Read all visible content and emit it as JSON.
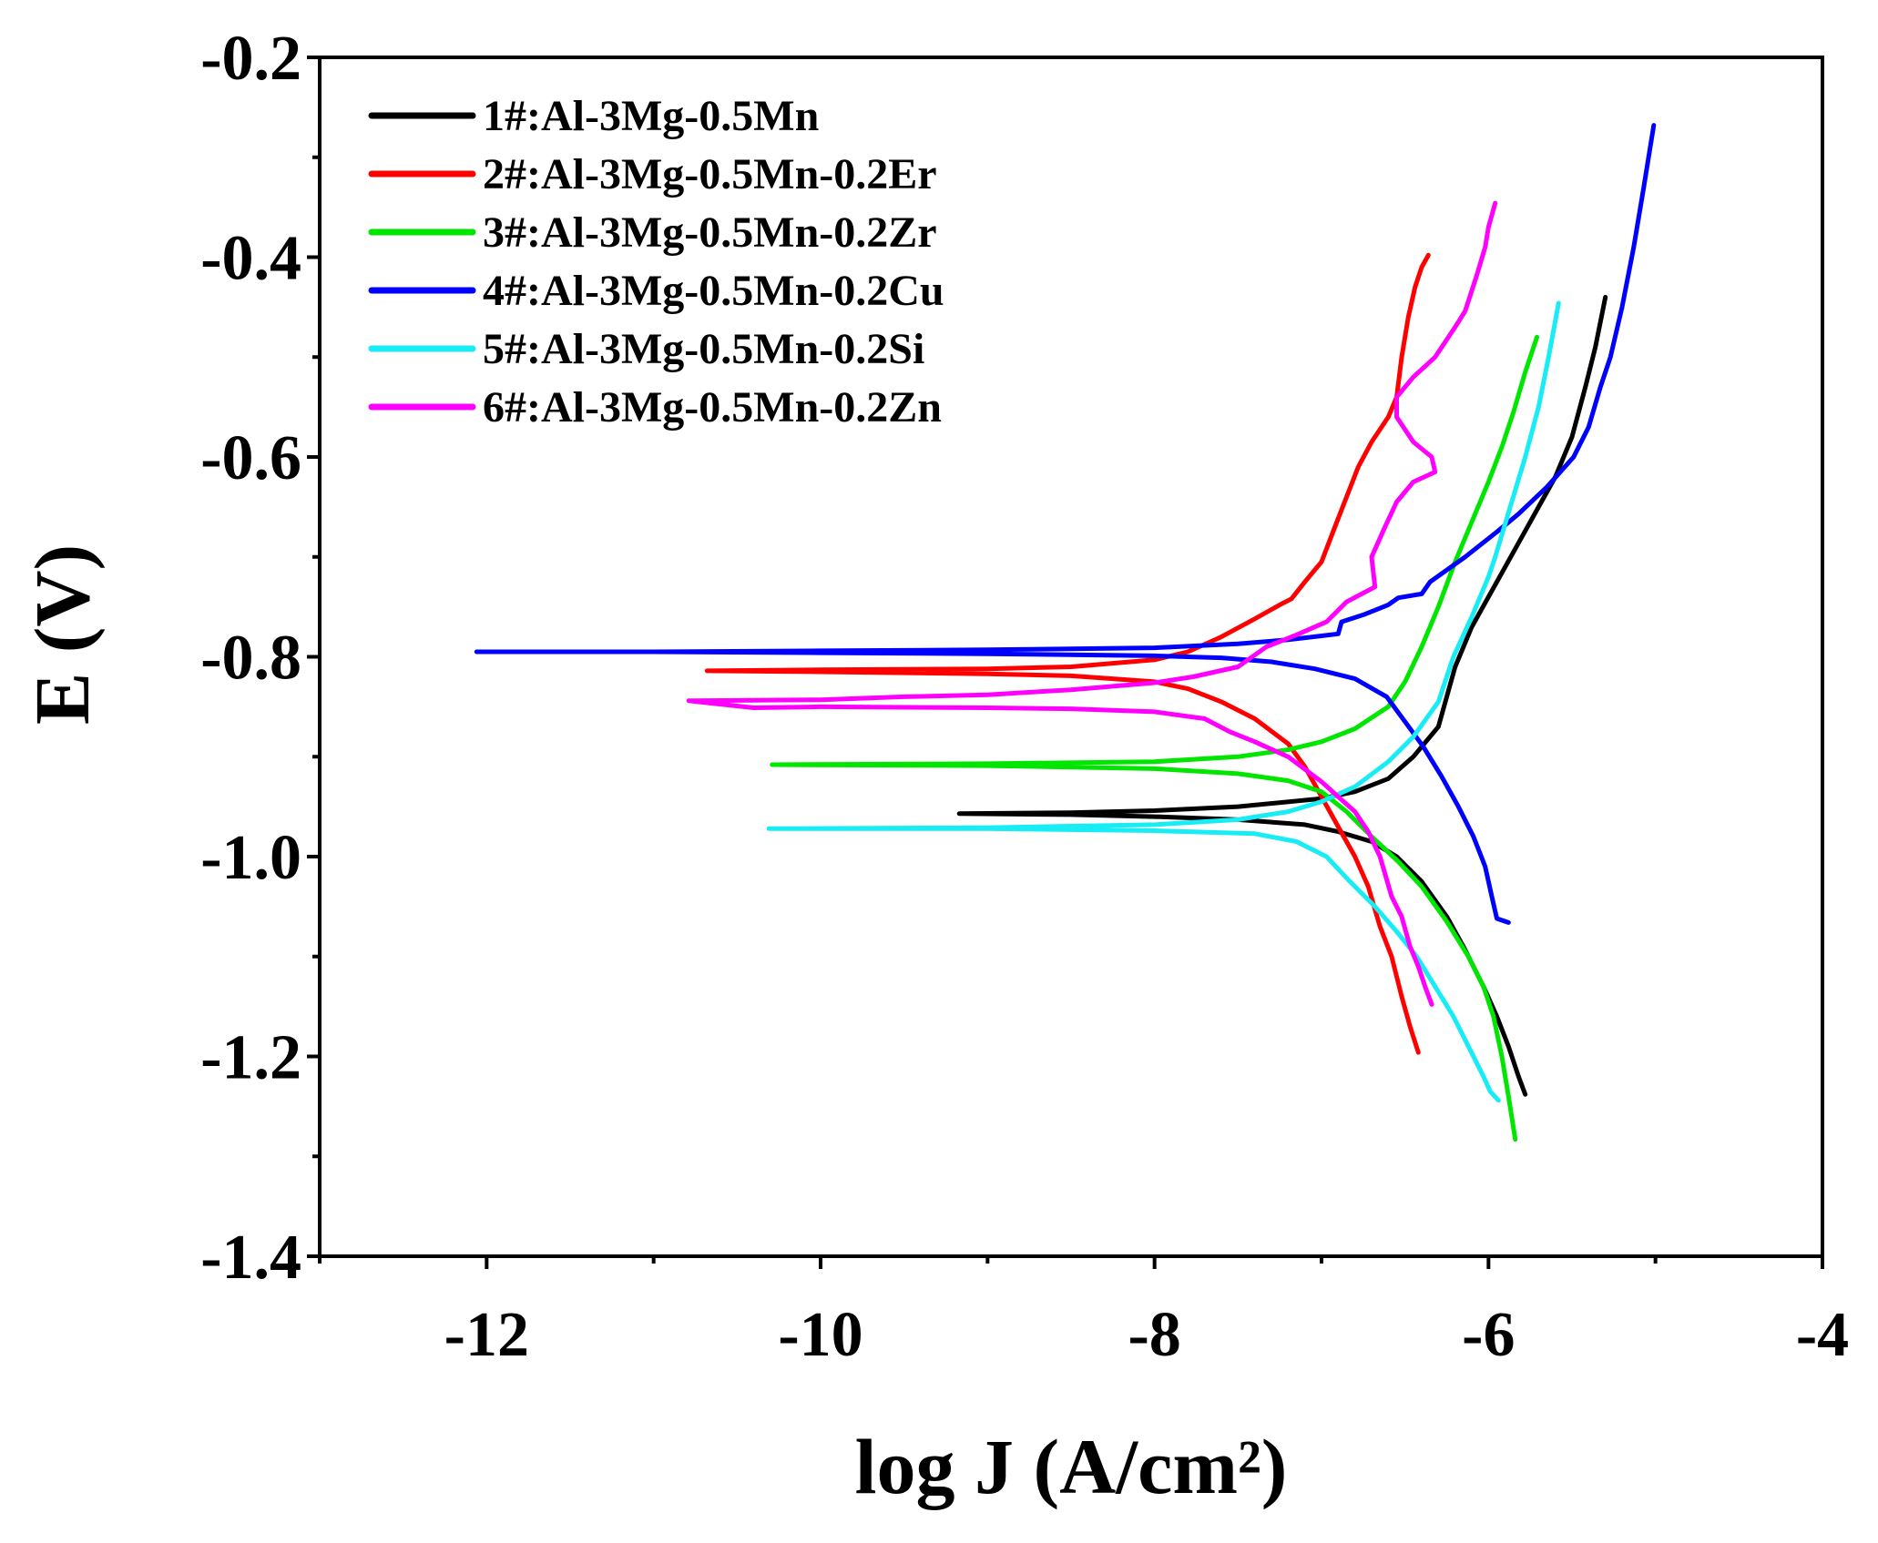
{
  "chart_data": {
    "type": "line",
    "xlabel": "log J (A/cm²)",
    "ylabel": "E (V)",
    "xlim": [
      -13,
      -4
    ],
    "ylim": [
      -1.4,
      -0.2
    ],
    "xticks": [
      -12,
      -10,
      -8,
      -6,
      -4
    ],
    "xtick_labels": [
      "-12",
      "-10",
      "-8",
      "-6",
      "-4"
    ],
    "x_minor_step": 1,
    "yticks": [
      -0.2,
      -0.4,
      -0.6,
      -0.8,
      -1.0,
      -1.2,
      -1.4
    ],
    "ytick_labels": [
      "-0.2",
      "-0.4",
      "-0.6",
      "-0.8",
      "-1.0",
      "-1.2",
      "-1.4"
    ],
    "y_minor_step": 0.1,
    "grid": false,
    "legend_position": "top-left",
    "series": [
      {
        "name": "1#:Al-3Mg-0.5Mn",
        "color": "#000000",
        "points": [
          [
            -5.78,
            -1.238
          ],
          [
            -5.82,
            -1.22
          ],
          [
            -5.88,
            -1.19
          ],
          [
            -5.95,
            -1.16
          ],
          [
            -6.03,
            -1.13
          ],
          [
            -6.15,
            -1.09
          ],
          [
            -6.25,
            -1.06
          ],
          [
            -6.4,
            -1.025
          ],
          [
            -6.55,
            -1.0
          ],
          [
            -6.7,
            -0.985
          ],
          [
            -6.9,
            -0.975
          ],
          [
            -7.1,
            -0.968
          ],
          [
            -7.5,
            -0.963
          ],
          [
            -8.0,
            -0.96
          ],
          [
            -8.5,
            -0.958
          ],
          [
            -9.17,
            -0.957
          ],
          [
            -8.5,
            -0.956
          ],
          [
            -8.0,
            -0.954
          ],
          [
            -7.5,
            -0.95
          ],
          [
            -7.0,
            -0.942
          ],
          [
            -6.8,
            -0.935
          ],
          [
            -6.6,
            -0.922
          ],
          [
            -6.45,
            -0.9
          ],
          [
            -6.3,
            -0.87
          ],
          [
            -6.25,
            -0.84
          ],
          [
            -6.2,
            -0.81
          ],
          [
            -6.1,
            -0.77
          ],
          [
            -6.0,
            -0.74
          ],
          [
            -5.9,
            -0.71
          ],
          [
            -5.8,
            -0.68
          ],
          [
            -5.7,
            -0.65
          ],
          [
            -5.6,
            -0.62
          ],
          [
            -5.5,
            -0.58
          ],
          [
            -5.42,
            -0.53
          ],
          [
            -5.36,
            -0.49
          ],
          [
            -5.3,
            -0.44
          ]
        ]
      },
      {
        "name": "2#:Al-3Mg-0.5Mn-0.2Er",
        "color": "#ff0000",
        "points": [
          [
            -6.42,
            -1.196
          ],
          [
            -6.47,
            -1.17
          ],
          [
            -6.52,
            -1.14
          ],
          [
            -6.58,
            -1.1
          ],
          [
            -6.65,
            -1.07
          ],
          [
            -6.72,
            -1.03
          ],
          [
            -6.8,
            -1.0
          ],
          [
            -6.9,
            -0.97
          ],
          [
            -7.0,
            -0.94
          ],
          [
            -7.1,
            -0.91
          ],
          [
            -7.2,
            -0.887
          ],
          [
            -7.4,
            -0.862
          ],
          [
            -7.6,
            -0.845
          ],
          [
            -7.8,
            -0.832
          ],
          [
            -8.0,
            -0.825
          ],
          [
            -8.5,
            -0.819
          ],
          [
            -9.0,
            -0.817
          ],
          [
            -10.0,
            -0.815
          ],
          [
            -10.68,
            -0.814
          ],
          [
            -10.0,
            -0.813
          ],
          [
            -9.0,
            -0.812
          ],
          [
            -8.5,
            -0.81
          ],
          [
            -8.0,
            -0.803
          ],
          [
            -7.8,
            -0.795
          ],
          [
            -7.6,
            -0.78
          ],
          [
            -7.4,
            -0.762
          ],
          [
            -7.25,
            -0.748
          ],
          [
            -7.18,
            -0.742
          ],
          [
            -7.1,
            -0.725
          ],
          [
            -7.0,
            -0.705
          ],
          [
            -6.92,
            -0.67
          ],
          [
            -6.85,
            -0.64
          ],
          [
            -6.78,
            -0.61
          ],
          [
            -6.7,
            -0.585
          ],
          [
            -6.6,
            -0.56
          ],
          [
            -6.55,
            -0.54
          ],
          [
            -6.52,
            -0.5
          ],
          [
            -6.48,
            -0.46
          ],
          [
            -6.44,
            -0.43
          ],
          [
            -6.4,
            -0.41
          ],
          [
            -6.36,
            -0.398
          ]
        ]
      },
      {
        "name": "3#:Al-3Mg-0.5Mn-0.2Zr",
        "color": "#00e600",
        "points": [
          [
            -5.84,
            -1.283
          ],
          [
            -5.88,
            -1.24
          ],
          [
            -5.92,
            -1.2
          ],
          [
            -5.97,
            -1.16
          ],
          [
            -6.03,
            -1.13
          ],
          [
            -6.12,
            -1.1
          ],
          [
            -6.25,
            -1.065
          ],
          [
            -6.4,
            -1.03
          ],
          [
            -6.54,
            -1.005
          ],
          [
            -6.7,
            -0.98
          ],
          [
            -6.85,
            -0.955
          ],
          [
            -7.0,
            -0.935
          ],
          [
            -7.2,
            -0.924
          ],
          [
            -7.5,
            -0.917
          ],
          [
            -8.0,
            -0.912
          ],
          [
            -9.0,
            -0.909
          ],
          [
            -10.29,
            -0.908
          ],
          [
            -9.0,
            -0.907
          ],
          [
            -8.0,
            -0.905
          ],
          [
            -7.5,
            -0.9
          ],
          [
            -7.2,
            -0.893
          ],
          [
            -7.0,
            -0.885
          ],
          [
            -6.8,
            -0.872
          ],
          [
            -6.6,
            -0.85
          ],
          [
            -6.5,
            -0.825
          ],
          [
            -6.4,
            -0.79
          ],
          [
            -6.3,
            -0.75
          ],
          [
            -6.2,
            -0.705
          ],
          [
            -6.1,
            -0.665
          ],
          [
            -6.0,
            -0.625
          ],
          [
            -5.92,
            -0.59
          ],
          [
            -5.85,
            -0.555
          ],
          [
            -5.78,
            -0.515
          ],
          [
            -5.71,
            -0.48
          ]
        ]
      },
      {
        "name": "4#:Al-3Mg-0.5Mn-0.2Cu",
        "color": "#0000ff",
        "points": [
          [
            -5.88,
            -1.066
          ],
          [
            -5.95,
            -1.062
          ],
          [
            -5.98,
            -1.04
          ],
          [
            -6.02,
            -1.01
          ],
          [
            -6.09,
            -0.98
          ],
          [
            -6.18,
            -0.95
          ],
          [
            -6.28,
            -0.92
          ],
          [
            -6.39,
            -0.89
          ],
          [
            -6.5,
            -0.865
          ],
          [
            -6.61,
            -0.84
          ],
          [
            -6.8,
            -0.822
          ],
          [
            -7.04,
            -0.812
          ],
          [
            -7.3,
            -0.805
          ],
          [
            -7.6,
            -0.801
          ],
          [
            -8.0,
            -0.799
          ],
          [
            -9.0,
            -0.797
          ],
          [
            -10.0,
            -0.796
          ],
          [
            -11.0,
            -0.795
          ],
          [
            -12.06,
            -0.795
          ],
          [
            -11.0,
            -0.795
          ],
          [
            -10.0,
            -0.794
          ],
          [
            -9.0,
            -0.793
          ],
          [
            -8.0,
            -0.791
          ],
          [
            -7.5,
            -0.787
          ],
          [
            -7.2,
            -0.783
          ],
          [
            -7.0,
            -0.779
          ],
          [
            -6.9,
            -0.777
          ],
          [
            -6.88,
            -0.765
          ],
          [
            -6.75,
            -0.758
          ],
          [
            -6.6,
            -0.748
          ],
          [
            -6.54,
            -0.741
          ],
          [
            -6.4,
            -0.737
          ],
          [
            -6.35,
            -0.725
          ],
          [
            -6.14,
            -0.7
          ],
          [
            -5.95,
            -0.675
          ],
          [
            -5.82,
            -0.657
          ],
          [
            -5.65,
            -0.63
          ],
          [
            -5.49,
            -0.6
          ],
          [
            -5.4,
            -0.57
          ],
          [
            -5.33,
            -0.53
          ],
          [
            -5.27,
            -0.5
          ],
          [
            -5.2,
            -0.45
          ],
          [
            -5.13,
            -0.39
          ],
          [
            -5.07,
            -0.33
          ],
          [
            -5.01,
            -0.268
          ]
        ]
      },
      {
        "name": "5#:Al-3Mg-0.5Mn-0.2Si",
        "color": "#18ecf5",
        "points": [
          [
            -5.94,
            -1.244
          ],
          [
            -5.99,
            -1.235
          ],
          [
            -6.03,
            -1.22
          ],
          [
            -6.12,
            -1.19
          ],
          [
            -6.21,
            -1.16
          ],
          [
            -6.32,
            -1.13
          ],
          [
            -6.43,
            -1.1
          ],
          [
            -6.55,
            -1.075
          ],
          [
            -6.68,
            -1.05
          ],
          [
            -6.83,
            -1.025
          ],
          [
            -6.97,
            -1.0
          ],
          [
            -7.15,
            -0.985
          ],
          [
            -7.4,
            -0.977
          ],
          [
            -8.0,
            -0.974
          ],
          [
            -9.0,
            -0.972
          ],
          [
            -10.31,
            -0.972
          ],
          [
            -9.0,
            -0.971
          ],
          [
            -8.0,
            -0.968
          ],
          [
            -7.5,
            -0.963
          ],
          [
            -7.2,
            -0.955
          ],
          [
            -7.0,
            -0.945
          ],
          [
            -6.8,
            -0.93
          ],
          [
            -6.6,
            -0.905
          ],
          [
            -6.45,
            -0.88
          ],
          [
            -6.3,
            -0.845
          ],
          [
            -6.21,
            -0.8
          ],
          [
            -6.1,
            -0.76
          ],
          [
            -6.0,
            -0.72
          ],
          [
            -5.96,
            -0.7
          ],
          [
            -5.87,
            -0.65
          ],
          [
            -5.78,
            -0.6
          ],
          [
            -5.7,
            -0.55
          ],
          [
            -5.64,
            -0.5
          ],
          [
            -5.58,
            -0.446
          ]
        ]
      },
      {
        "name": "6#:Al-3Mg-0.5Mn-0.2Zn",
        "color": "#ff00ff",
        "points": [
          [
            -6.34,
            -1.148
          ],
          [
            -6.38,
            -1.13
          ],
          [
            -6.42,
            -1.11
          ],
          [
            -6.47,
            -1.09
          ],
          [
            -6.52,
            -1.06
          ],
          [
            -6.58,
            -1.04
          ],
          [
            -6.65,
            -1.0
          ],
          [
            -6.72,
            -0.975
          ],
          [
            -6.8,
            -0.955
          ],
          [
            -6.9,
            -0.94
          ],
          [
            -7.0,
            -0.925
          ],
          [
            -7.2,
            -0.9
          ],
          [
            -7.4,
            -0.885
          ],
          [
            -7.55,
            -0.875
          ],
          [
            -7.7,
            -0.862
          ],
          [
            -8.0,
            -0.855
          ],
          [
            -8.5,
            -0.852
          ],
          [
            -9.0,
            -0.851
          ],
          [
            -10.0,
            -0.85
          ],
          [
            -10.4,
            -0.851
          ],
          [
            -10.79,
            -0.844
          ],
          [
            -10.0,
            -0.843
          ],
          [
            -9.5,
            -0.84
          ],
          [
            -9.0,
            -0.838
          ],
          [
            -8.5,
            -0.833
          ],
          [
            -8.0,
            -0.826
          ],
          [
            -7.77,
            -0.82
          ],
          [
            -7.5,
            -0.81
          ],
          [
            -7.33,
            -0.79
          ],
          [
            -7.15,
            -0.778
          ],
          [
            -6.97,
            -0.765
          ],
          [
            -6.85,
            -0.745
          ],
          [
            -6.68,
            -0.73
          ],
          [
            -6.7,
            -0.7
          ],
          [
            -6.62,
            -0.67
          ],
          [
            -6.55,
            -0.645
          ],
          [
            -6.45,
            -0.625
          ],
          [
            -6.32,
            -0.615
          ],
          [
            -6.34,
            -0.6
          ],
          [
            -6.45,
            -0.585
          ],
          [
            -6.55,
            -0.56
          ],
          [
            -6.55,
            -0.54
          ],
          [
            -6.45,
            -0.52
          ],
          [
            -6.32,
            -0.5
          ],
          [
            -6.2,
            -0.47
          ],
          [
            -6.14,
            -0.454
          ],
          [
            -6.07,
            -0.418
          ],
          [
            -6.02,
            -0.39
          ],
          [
            -6.0,
            -0.37
          ],
          [
            -5.96,
            -0.346
          ]
        ]
      }
    ]
  }
}
